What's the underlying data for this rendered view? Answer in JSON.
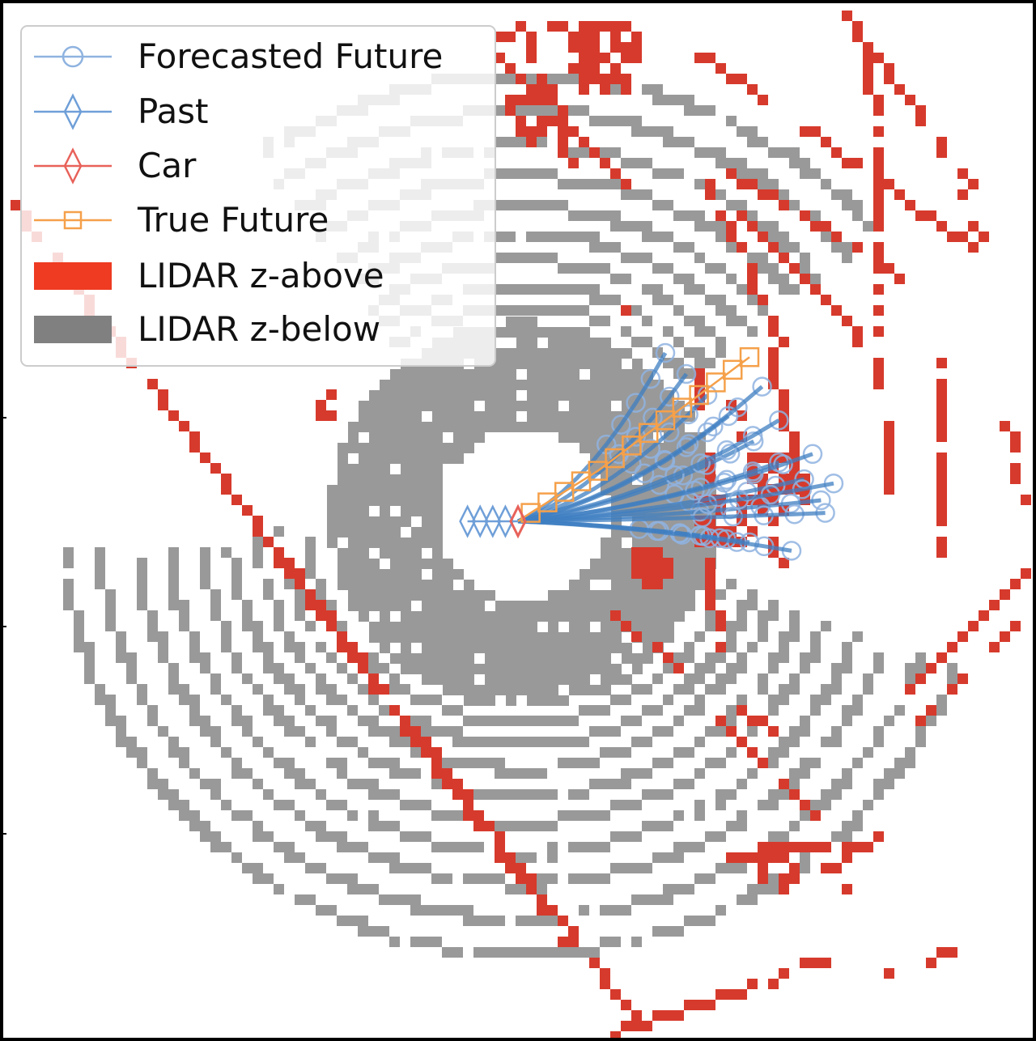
{
  "chart_data": {
    "type": "scatter",
    "title": "",
    "xlabel": "",
    "ylabel": "",
    "grid": false,
    "legend_position": "top-left",
    "colors": {
      "forecast": "#8fb3e0",
      "past": "#6f9fd8",
      "car": "#e8625a",
      "true_future": "#f5a04a",
      "lidar_above": "#d63a2c",
      "lidar_below": "#999999",
      "forecast_bundle": "#3f7fc2"
    },
    "legend": [
      {
        "label": "Forecasted Future",
        "marker": "circle",
        "key": "forecast"
      },
      {
        "label": "Past",
        "marker": "diamond",
        "key": "past"
      },
      {
        "label": "Car",
        "marker": "diamond",
        "key": "car"
      },
      {
        "label": "True Future",
        "marker": "square",
        "key": "true_future"
      },
      {
        "label": "LIDAR z-above",
        "marker": "patch",
        "key": "lidar_above"
      },
      {
        "label": "LIDAR z-below",
        "marker": "patch",
        "key": "lidar_below"
      }
    ],
    "car": {
      "x": 0,
      "y": 0
    },
    "past": {
      "x": [
        -1.2,
        -0.9,
        -0.6,
        -0.3
      ],
      "y": [
        0,
        0,
        0,
        0
      ]
    },
    "true_future": {
      "x": [
        0.3,
        0.7,
        1.1,
        1.5,
        1.9,
        2.3,
        2.7,
        3.1,
        3.5,
        3.9,
        4.3,
        4.7,
        5.1,
        5.5
      ],
      "y": [
        0.2,
        0.45,
        0.7,
        0.95,
        1.2,
        1.5,
        1.8,
        2.1,
        2.4,
        2.7,
        3.0,
        3.3,
        3.6,
        3.9
      ]
    },
    "forecast_endpoints": {
      "x": [
        3.5,
        4.0,
        4.5,
        5.0,
        5.6,
        6.2,
        6.8,
        7.2,
        7.5,
        7.0,
        6.2,
        5.5,
        4.8,
        6.5,
        7.3,
        5.8
      ],
      "y": [
        4.0,
        3.5,
        3.0,
        2.5,
        1.9,
        1.4,
        1.0,
        0.5,
        0.9,
        1.6,
        2.4,
        -0.5,
        -0.4,
        -0.7,
        0.2,
        3.2
      ]
    }
  }
}
